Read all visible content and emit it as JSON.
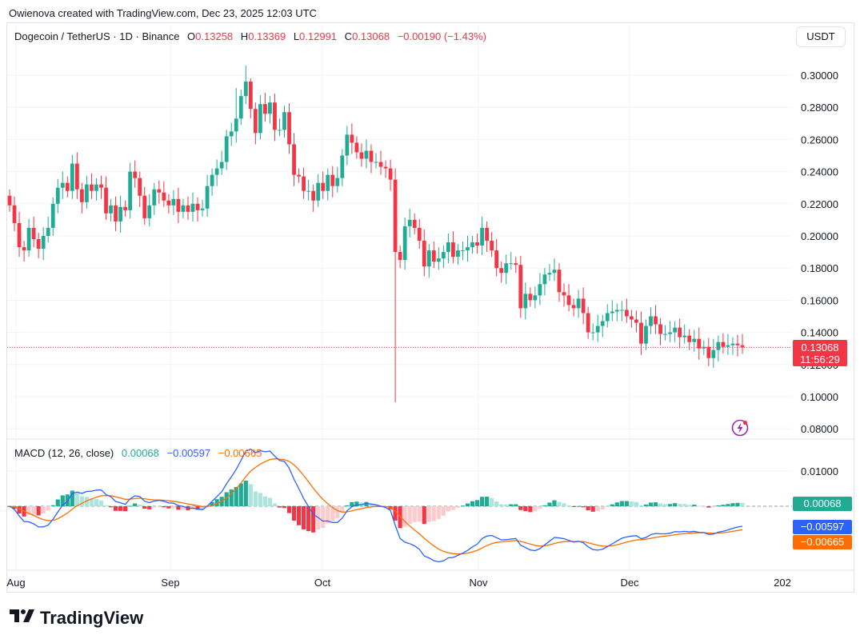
{
  "credit": "Owienova created with TradingView.com, Dec 23, 2025 12:03 UTC",
  "legend": {
    "symbol": "Dogecoin / TetherUS · 1D · Binance",
    "o_label": "O",
    "o": "0.13258",
    "h_label": "H",
    "h": "0.13369",
    "l_label": "L",
    "l": "0.12991",
    "c_label": "C",
    "c": "0.13068",
    "change": "−0.00190 (−1.43%)"
  },
  "currency": "USDT",
  "price_tag": {
    "price": "0.13068",
    "countdown": "11:56:29"
  },
  "macd_legend": {
    "name": "MACD (12, 26, close)",
    "hist": "0.00068",
    "macd": "−0.00597",
    "signal": "−0.00665"
  },
  "macd_tags": {
    "hist": "0.00068",
    "macd": "−0.00597",
    "signal": "−0.00665"
  },
  "brand": "TradingView",
  "colors": {
    "up": "#22ab94",
    "down": "#f23645",
    "macd": "#2962ff",
    "signal": "#ff6d00",
    "hist_up_strong": "#22ab94",
    "hist_up_weak": "#ace5dc",
    "hist_down_strong": "#f23645",
    "hist_down_weak": "#fccbcd"
  },
  "chart_data": {
    "type": "candlestick",
    "price_axis": {
      "ticks": [
        "0.30000",
        "0.28000",
        "0.26000",
        "0.24000",
        "0.22000",
        "0.20000",
        "0.18000",
        "0.16000",
        "0.14000",
        "0.12000",
        "0.10000",
        "0.08000"
      ],
      "last": 0.13068
    },
    "time_axis": {
      "labels": [
        "Aug",
        "Sep",
        "Oct",
        "Nov",
        "Dec",
        "202"
      ]
    },
    "macd_axis": {
      "ticks": [
        "0.01000"
      ]
    },
    "closes": [
      0.219,
      0.208,
      0.193,
      0.191,
      0.205,
      0.198,
      0.192,
      0.2,
      0.205,
      0.22,
      0.23,
      0.233,
      0.228,
      0.245,
      0.229,
      0.221,
      0.232,
      0.228,
      0.232,
      0.23,
      0.214,
      0.219,
      0.209,
      0.218,
      0.216,
      0.24,
      0.236,
      0.225,
      0.211,
      0.219,
      0.229,
      0.227,
      0.222,
      0.219,
      0.223,
      0.215,
      0.219,
      0.215,
      0.22,
      0.216,
      0.217,
      0.231,
      0.238,
      0.242,
      0.246,
      0.262,
      0.265,
      0.273,
      0.287,
      0.296,
      0.279,
      0.264,
      0.282,
      0.276,
      0.283,
      0.266,
      0.266,
      0.277,
      0.257,
      0.238,
      0.237,
      0.228,
      0.228,
      0.222,
      0.233,
      0.228,
      0.238,
      0.231,
      0.236,
      0.25,
      0.263,
      0.258,
      0.252,
      0.248,
      0.253,
      0.246,
      0.246,
      0.243,
      0.242,
      0.235,
      0.19,
      0.185,
      0.206,
      0.21,
      0.205,
      0.197,
      0.181,
      0.191,
      0.184,
      0.186,
      0.19,
      0.196,
      0.187,
      0.191,
      0.191,
      0.193,
      0.196,
      0.194,
      0.205,
      0.197,
      0.191,
      0.18,
      0.177,
      0.183,
      0.183,
      0.182,
      0.155,
      0.164,
      0.16,
      0.163,
      0.17,
      0.176,
      0.177,
      0.179,
      0.165,
      0.163,
      0.157,
      0.155,
      0.161,
      0.152,
      0.14,
      0.14,
      0.144,
      0.147,
      0.152,
      0.153,
      0.154,
      0.154,
      0.15,
      0.148,
      0.146,
      0.133,
      0.144,
      0.15,
      0.145,
      0.139,
      0.139,
      0.14,
      0.143,
      0.137,
      0.138,
      0.134,
      0.136,
      0.13,
      0.131,
      0.124,
      0.129,
      0.134,
      0.131,
      0.132,
      0.133,
      0.132,
      0.1307
    ],
    "macd_values": {
      "last_histogram": 0.00068,
      "last_macd": -0.00597,
      "last_signal": -0.00665
    }
  }
}
